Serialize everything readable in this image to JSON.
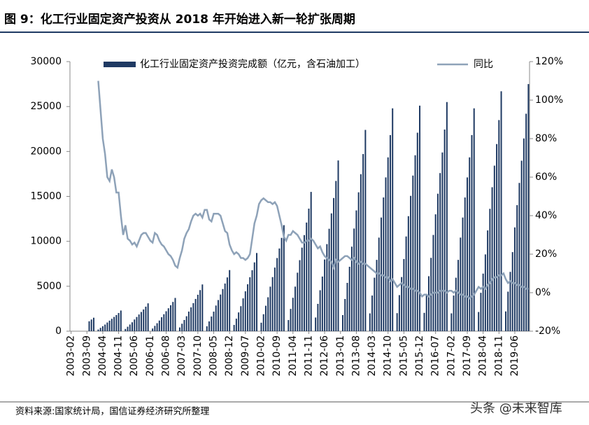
{
  "chart_data": {
    "type": "bar-line",
    "title": "图 9：化工行业固定资产投资从 2018 年开始进入新一轮扩张周期",
    "source": "资料来源:国家统计局，国信证券经济研究所整理",
    "watermark": "头条 @未来智库",
    "categories": [
      "2003-02",
      null,
      null,
      null,
      null,
      null,
      null,
      "2003-09",
      null,
      null,
      null,
      null,
      null,
      null,
      "2004-04",
      null,
      null,
      null,
      null,
      null,
      null,
      "2004-11",
      null,
      null,
      null,
      null,
      null,
      null,
      "2005-06",
      null,
      null,
      null,
      null,
      null,
      null,
      "2006-01",
      null,
      null,
      null,
      null,
      null,
      null,
      "2006-08",
      null,
      null,
      null,
      null,
      null,
      null,
      "2007-03",
      null,
      null,
      null,
      null,
      null,
      null,
      "2007-10",
      null,
      null,
      null,
      null,
      null,
      null,
      "2008-05",
      null,
      null,
      null,
      null,
      null,
      null,
      "2008-12",
      null,
      null,
      null,
      null,
      null,
      null,
      "2009-07",
      null,
      null,
      null,
      null,
      null,
      null,
      "2010-02",
      null,
      null,
      null,
      null,
      null,
      null,
      "2010-09",
      null,
      null,
      null,
      null,
      null,
      null,
      "2011-04",
      null,
      null,
      null,
      null,
      null,
      null,
      "2011-11",
      null,
      null,
      null,
      null,
      null,
      null,
      "2012-06",
      null,
      null,
      null,
      null,
      null,
      null,
      "2013-01",
      null,
      null,
      null,
      null,
      null,
      null,
      "2013-08",
      null,
      null,
      null,
      null,
      null,
      null,
      "2014-03",
      null,
      null,
      null,
      null,
      null,
      null,
      "2014-10",
      null,
      null,
      null,
      null,
      null,
      null,
      "2015-05",
      null,
      null,
      null,
      null,
      null,
      null,
      "2015-12",
      null,
      null,
      null,
      null,
      null,
      null,
      "2016-07",
      null,
      null,
      null,
      null,
      null,
      null,
      "2017-02",
      null,
      null,
      null,
      null,
      null,
      null,
      "2017-09",
      null,
      null,
      null,
      null,
      null,
      null,
      "2018-04",
      null,
      null,
      null,
      null,
      null,
      null,
      "2018-11",
      null,
      null,
      null,
      null,
      null,
      null,
      "2019-06",
      null,
      null,
      null,
      null,
      null,
      null
    ],
    "series": [
      {
        "name": "化工行业固定资产投资完成额（亿元，含石油加工）",
        "kind": "bar",
        "axis": "y",
        "color": "#1f3a63",
        "values": [
          null,
          null,
          null,
          null,
          null,
          null,
          null,
          null,
          1100,
          1300,
          1500,
          null,
          184,
          368,
          552,
          736,
          966,
          1173,
          1380,
          1587,
          1794,
          2024,
          2300,
          null,
          248,
          496,
          744,
          992,
          1302,
          1581,
          1860,
          2139,
          2418,
          2728,
          3100,
          null,
          296,
          592,
          888,
          1184,
          1554,
          1887,
          2220,
          2553,
          2886,
          3256,
          3700,
          null,
          416,
          832,
          1248,
          1664,
          2184,
          2652,
          3120,
          3588,
          4056,
          4576,
          5200,
          null,
          544,
          1088,
          1632,
          2176,
          2856,
          3468,
          4080,
          4692,
          5304,
          5984,
          6800,
          null,
          696,
          1392,
          2088,
          2784,
          3654,
          4437,
          5220,
          6003,
          6786,
          7656,
          8700,
          null,
          944,
          1888,
          2832,
          3776,
          4956,
          6018,
          7080,
          8142,
          9204,
          10384,
          11800,
          null,
          1240,
          2480,
          3720,
          4960,
          6510,
          7905,
          9300,
          10695,
          12090,
          13640,
          15500,
          null,
          1520,
          3040,
          4560,
          6080,
          7980,
          9690,
          11400,
          13110,
          14820,
          16720,
          19000,
          null,
          1792,
          3584,
          5376,
          7168,
          9408,
          11424,
          13440,
          15456,
          17472,
          19712,
          22400,
          null,
          1984,
          3968,
          5952,
          7936,
          10416,
          12648,
          14880,
          17112,
          19344,
          21824,
          24800,
          null,
          2008,
          4016,
          6024,
          8032,
          10542,
          12801,
          15060,
          17319,
          19578,
          22088,
          25100,
          null,
          2040,
          4080,
          6120,
          8160,
          10710,
          13005,
          15300,
          17595,
          19890,
          22440,
          25500,
          null,
          1984,
          3968,
          5952,
          7936,
          10416,
          12648,
          14880,
          17112,
          19344,
          21824,
          24800,
          null,
          2136,
          4272,
          6408,
          8544,
          11214,
          13617,
          16020,
          18423,
          20826,
          23496,
          26700,
          null,
          2200,
          4400,
          6600,
          8800,
          11550,
          14025,
          16500,
          18975,
          21450,
          24200,
          27500
        ]
      },
      {
        "name": "同比",
        "kind": "line",
        "axis": "y2",
        "color": "#8ea2b8",
        "values": [
          null,
          null,
          null,
          null,
          null,
          null,
          null,
          null,
          null,
          null,
          null,
          null,
          110,
          95,
          80,
          72,
          60,
          58,
          64,
          60,
          52,
          52,
          40,
          30,
          35,
          28,
          27,
          25,
          26,
          24,
          27,
          30,
          31,
          31,
          29,
          27,
          26,
          31,
          30,
          27,
          25,
          24,
          22,
          20,
          19,
          17,
          14,
          13,
          18,
          22,
          28,
          31,
          33,
          37,
          40,
          41,
          40,
          41,
          39,
          43,
          43,
          38,
          37,
          41,
          41,
          41,
          40,
          36,
          32,
          31,
          25,
          22,
          20,
          21,
          20,
          18,
          18,
          17,
          18,
          20,
          28,
          36,
          40,
          46,
          48,
          49,
          48,
          47,
          47,
          46,
          47,
          45,
          40,
          35,
          29,
          27,
          30,
          30,
          32,
          31,
          30,
          28,
          26,
          26,
          27,
          27,
          28,
          27,
          25,
          23,
          24,
          21,
          19,
          18,
          17,
          16,
          13,
          17,
          16,
          17,
          18,
          19,
          19,
          18,
          17,
          18,
          16,
          15,
          16,
          15,
          15,
          14,
          13,
          12,
          11,
          10,
          10,
          9,
          9,
          8,
          8,
          6,
          7,
          5,
          3,
          4,
          5,
          4,
          3,
          3,
          2,
          2,
          1,
          1,
          0,
          -2,
          -1,
          -1,
          -2,
          -1,
          0,
          0,
          0,
          1,
          1,
          1,
          0,
          1,
          1,
          0,
          1,
          0,
          -1,
          -1,
          -2,
          -2,
          -3,
          -2,
          -1,
          1,
          3,
          2,
          3,
          2,
          4,
          5,
          7,
          8,
          8,
          9,
          9,
          10,
          7,
          5,
          6,
          5,
          5,
          4,
          4,
          3,
          3,
          2,
          2
        ]
      }
    ],
    "ylim": [
      0,
      30000
    ],
    "yticks": [
      0,
      5000,
      10000,
      15000,
      20000,
      25000,
      30000
    ],
    "y2lim": [
      -20,
      120
    ],
    "y2ticks": [
      {
        "value": -20,
        "label": "-20%"
      },
      {
        "value": 0,
        "label": "0%"
      },
      {
        "value": 20,
        "label": "20%"
      },
      {
        "value": 40,
        "label": "40%"
      },
      {
        "value": 60,
        "label": "60%"
      },
      {
        "value": 80,
        "label": "80%"
      },
      {
        "value": 100,
        "label": "100%"
      },
      {
        "value": 120,
        "label": "120%"
      }
    ]
  }
}
